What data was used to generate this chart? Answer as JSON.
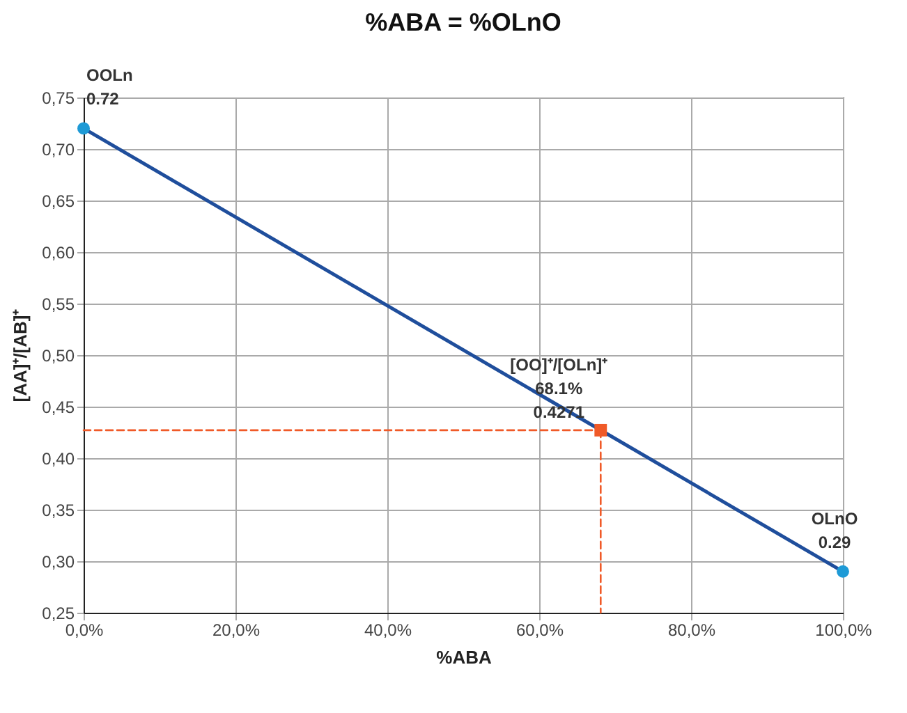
{
  "chart_data": {
    "type": "line",
    "title": "%ABA = %OLnO",
    "xlabel": "%ABA",
    "ylabel": "[AA]⁺/[AB]⁺",
    "xlim": [
      0,
      100
    ],
    "xticks": [
      {
        "value": 0,
        "label": "0,0%"
      },
      {
        "value": 20,
        "label": "20,0%"
      },
      {
        "value": 40,
        "label": "40,0%"
      },
      {
        "value": 60,
        "label": "60,0%"
      },
      {
        "value": 80,
        "label": "80,0%"
      },
      {
        "value": 100,
        "label": "100,0%"
      }
    ],
    "ylim": [
      0.25,
      0.75
    ],
    "yticks": [
      {
        "value": 0.25,
        "label": "0,25"
      },
      {
        "value": 0.3,
        "label": "0,30"
      },
      {
        "value": 0.35,
        "label": "0,35"
      },
      {
        "value": 0.4,
        "label": "0,40"
      },
      {
        "value": 0.45,
        "label": "0,45"
      },
      {
        "value": 0.5,
        "label": "0,50"
      },
      {
        "value": 0.55,
        "label": "0,55"
      },
      {
        "value": 0.6,
        "label": "0,60"
      },
      {
        "value": 0.65,
        "label": "0,65"
      },
      {
        "value": 0.7,
        "label": "0,70"
      },
      {
        "value": 0.75,
        "label": "0,75"
      }
    ],
    "grid": true,
    "series": [
      {
        "color": "#1f4e9c",
        "x": [
          0,
          100
        ],
        "values": [
          0.72,
          0.29
        ]
      },
      {
        "type": "scatter",
        "marker": "circle",
        "color": "#1e9ad6",
        "x": [
          0,
          100
        ],
        "values": [
          0.72,
          0.29
        ]
      },
      {
        "line_style": "dashed",
        "color": "#f05a28",
        "x": [
          0,
          68.1
        ],
        "values": [
          0.4271,
          0.4271
        ]
      },
      {
        "line_style": "dashed",
        "color": "#f05a28",
        "x": [
          68.1,
          68.1
        ],
        "values": [
          0.4271,
          0.25
        ]
      },
      {
        "type": "scatter",
        "marker": "square",
        "color": "#f05a28",
        "x": [
          68.1
        ],
        "values": [
          0.4271
        ]
      }
    ],
    "annotations": [
      {
        "text": "OOLn",
        "x": 0,
        "y": 0.72
      },
      {
        "text": "0.72",
        "x": 0,
        "y": 0.72
      },
      "[OO]⁺/[OLn]⁺",
      "68.1%",
      {
        "text": "0.4271",
        "x": 68.1,
        "y": 0.4271
      },
      {
        "text": "OLnO",
        "x": 100,
        "y": 0.29
      },
      {
        "text": "0.29",
        "x": 100,
        "y": 0.29
      }
    ]
  }
}
